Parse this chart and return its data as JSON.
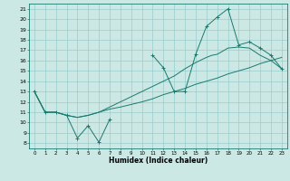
{
  "title": "",
  "xlabel": "Humidex (Indice chaleur)",
  "bg_color": "#cce8e4",
  "grid_color": "#99cccc",
  "line_color": "#1a7a6e",
  "xlim": [
    -0.5,
    23.5
  ],
  "ylim": [
    7.5,
    21.5
  ],
  "xticks": [
    0,
    1,
    2,
    3,
    4,
    5,
    6,
    7,
    8,
    9,
    10,
    11,
    12,
    13,
    14,
    15,
    16,
    17,
    18,
    19,
    20,
    21,
    22,
    23
  ],
  "yticks": [
    8,
    9,
    10,
    11,
    12,
    13,
    14,
    15,
    16,
    17,
    18,
    19,
    20,
    21
  ],
  "main_line_x": [
    0,
    1,
    2,
    3,
    4,
    5,
    6,
    7,
    8,
    10,
    11,
    12,
    13,
    14,
    15,
    16,
    17,
    18,
    19,
    20,
    21,
    22,
    23
  ],
  "main_line_y": [
    13,
    11,
    11,
    10.7,
    8.5,
    9.7,
    8.1,
    10.3,
    null,
    null,
    16.5,
    15.3,
    13.0,
    13.0,
    16.6,
    19.3,
    20.2,
    21.0,
    17.5,
    17.8,
    17.2,
    16.5,
    15.2
  ],
  "line2_x": [
    0,
    1,
    2,
    3,
    4,
    5,
    6,
    7,
    8,
    10,
    11,
    12,
    13,
    14,
    15,
    16,
    17,
    18,
    19,
    20,
    21,
    22,
    23
  ],
  "line2_y": [
    13,
    11,
    11,
    10.7,
    10.5,
    10.7,
    11.0,
    11.3,
    11.5,
    12.0,
    12.3,
    12.7,
    13.0,
    13.3,
    13.7,
    14.0,
    14.3,
    14.7,
    15.0,
    15.3,
    15.7,
    16.0,
    16.3
  ],
  "line3_x": [
    0,
    1,
    2,
    3,
    4,
    5,
    6,
    7,
    8,
    10,
    11,
    12,
    13,
    14,
    15,
    16,
    16.5,
    17,
    18,
    19,
    20,
    21,
    22,
    23
  ],
  "line3_y": [
    13,
    11,
    11,
    10.7,
    10.5,
    10.7,
    11.0,
    11.5,
    12.0,
    13.0,
    13.5,
    14.0,
    14.5,
    15.2,
    15.8,
    16.3,
    16.5,
    16.6,
    17.2,
    17.3,
    17.2,
    16.5,
    16.0,
    15.2
  ]
}
